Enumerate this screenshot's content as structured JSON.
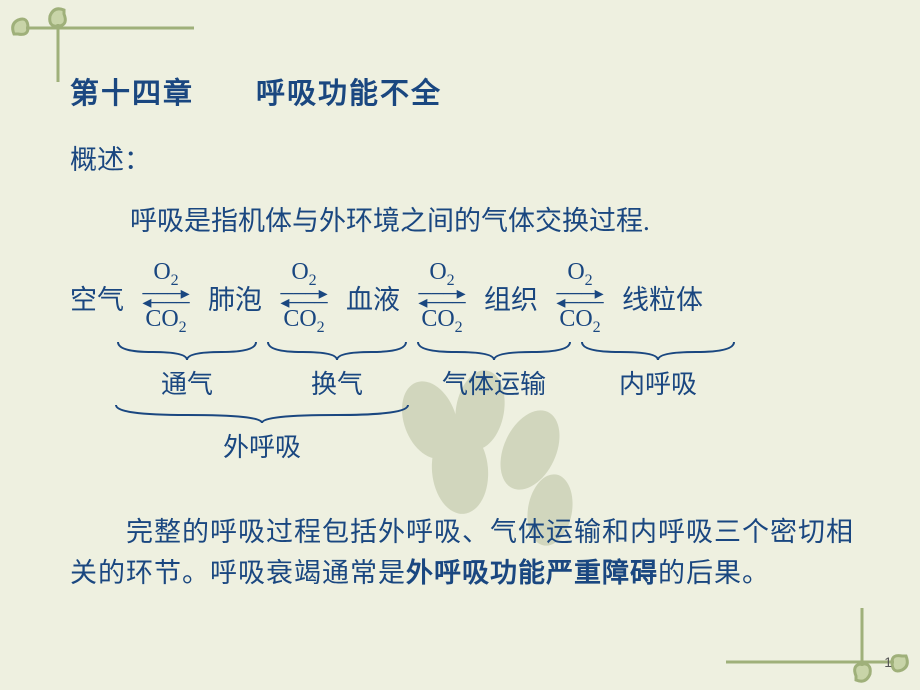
{
  "title": "第十四章　　呼吸功能不全",
  "subhead": "概述：",
  "intro": "呼吸是指机体与外环境之间的气体交换过程.",
  "nodes": [
    "空气",
    "肺泡",
    "血液",
    "组织",
    "线粒体"
  ],
  "gas_top": "O",
  "gas_top_sub": "2",
  "gas_bot": "CO",
  "gas_bot_sub": "2",
  "stage_labels": [
    "通气",
    "换气",
    "气体运输",
    "内呼吸"
  ],
  "outer_label": "外呼吸",
  "conclusion_pre": "　　完整的呼吸过程包括外呼吸、气体运输和内呼吸三个密切相关的环节。呼吸衰竭通常是",
  "conclusion_bold": "外呼吸功能严重障碍",
  "conclusion_post": "的后果。",
  "page": "1",
  "title_fontsize": "29px",
  "subhead_fontsize": "27px",
  "intro_fontsize": "27px",
  "text_color": "#1a4780",
  "bg_color": "#eef0e0",
  "deco_color": "#9fb07a",
  "stage_widths": [
    150,
    150,
    164,
    164
  ],
  "outer_brace_width": 300
}
